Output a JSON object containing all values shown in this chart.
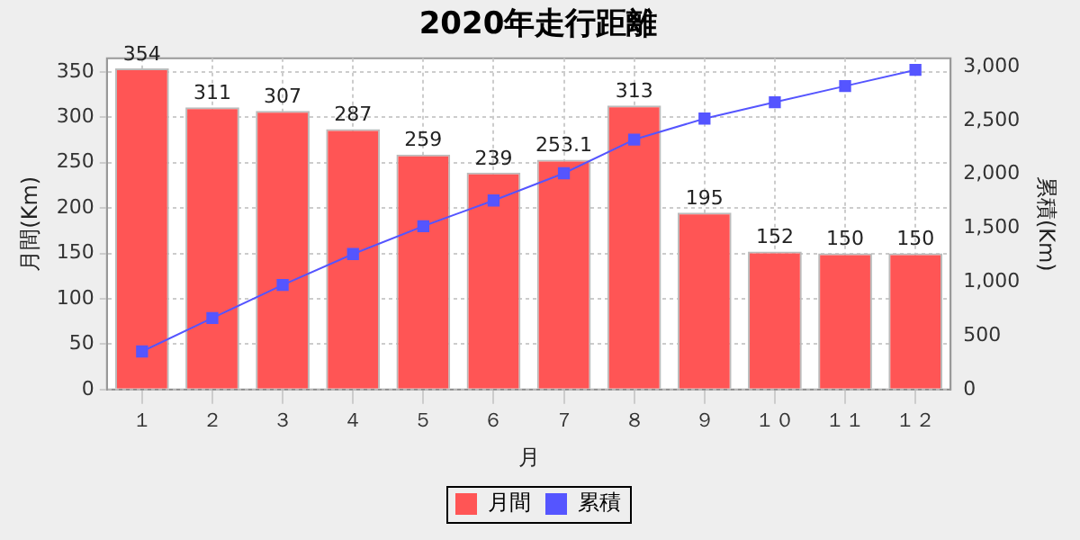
{
  "chart_data": {
    "type": "bar",
    "title": "2020年走行距離",
    "xlabel": "月",
    "ylabel": "月間(Km)",
    "y2label": "累積(Km)",
    "categories": [
      "１",
      "２",
      "３",
      "４",
      "５",
      "６",
      "７",
      "８",
      "９",
      "１０",
      "１１",
      "１２"
    ],
    "series": [
      {
        "name": "月間",
        "color": "#ff5555",
        "values": [
          354,
          311,
          307,
          287,
          259,
          239,
          253.1,
          313,
          195,
          152,
          150,
          150
        ],
        "value_labels": [
          "354",
          "311",
          "307",
          "287",
          "259",
          "239",
          "253.1",
          "313",
          "195",
          "152",
          "150",
          "150"
        ]
      },
      {
        "name": "累積",
        "type": "line",
        "axis": "y2",
        "color": "#5555ff",
        "marker": "square",
        "values": [
          354,
          665,
          972,
          1259,
          1518,
          1757,
          2010,
          2323,
          2518,
          2670,
          2820,
          2970
        ]
      }
    ],
    "ylim": [
      0,
      365
    ],
    "yticks": [
      0,
      50,
      100,
      150,
      200,
      250,
      300,
      350
    ],
    "y2lim": [
      0,
      3078
    ],
    "y2ticks": [
      {
        "value": 0,
        "label": "0"
      },
      {
        "value": 500,
        "label": "500"
      },
      {
        "value": 1000,
        "label": "1,000"
      },
      {
        "value": 1500,
        "label": "1,500"
      },
      {
        "value": 2000,
        "label": "2,000"
      },
      {
        "value": 2500,
        "label": "2,500"
      },
      {
        "value": 3000,
        "label": "3,000"
      }
    ],
    "grid": true,
    "legend": "bottom"
  }
}
